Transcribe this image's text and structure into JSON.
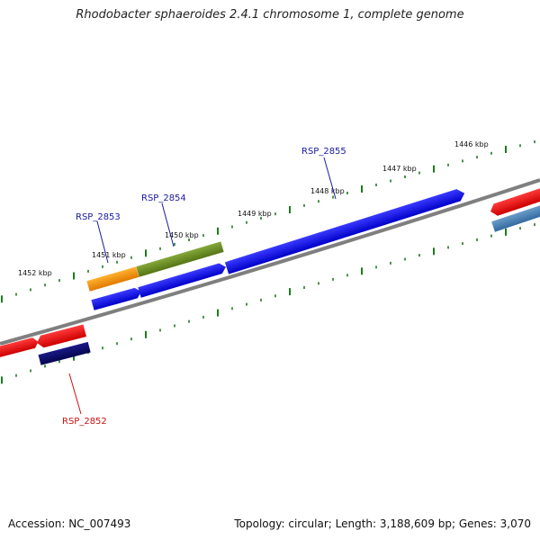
{
  "title": "Rhodobacter sphaeroides 2.4.1 chromosome 1, complete genome",
  "footer": {
    "accession": "Accession: NC_007493",
    "summary": "Topology: circular; Length: 3,188,609 bp; Genes: 3,070"
  },
  "scale_labels": [
    "1452 kbp",
    "1451 kbp",
    "1450 kbp",
    "1449 kbp",
    "1448 kbp",
    "1447 kbp",
    "1446 kbp"
  ],
  "gene_labels": [
    {
      "text": "RSP_2853",
      "color": "#1a1aa0"
    },
    {
      "text": "RSP_2854",
      "color": "#1a1aa0"
    },
    {
      "text": "RSP_2855",
      "color": "#1a1aa0"
    },
    {
      "text": "RSP_2852",
      "color": "#cc1111"
    }
  ],
  "colors": {
    "backbone": "#808080",
    "ticks": "#1e7a1e",
    "gene_blue": "#0a0aee",
    "gene_red": "#ee1111",
    "gene_orange": "#ff9a1a",
    "gene_olive": "#6b8f23",
    "gene_navy": "#0b0b6e",
    "gene_steel": "#4a82b4"
  }
}
